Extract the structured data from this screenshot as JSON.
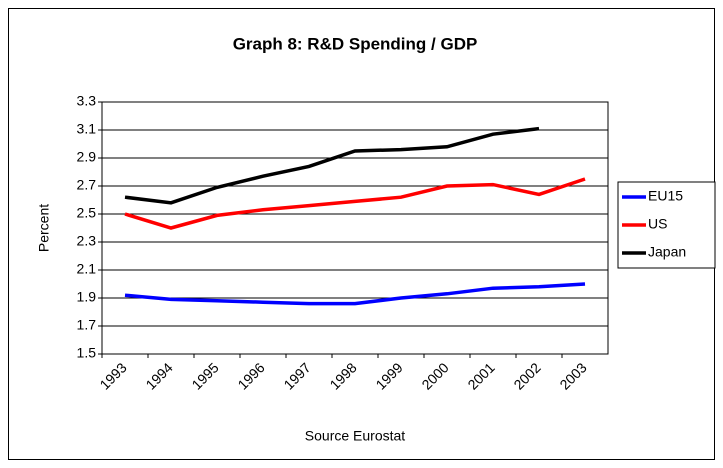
{
  "chart_data": {
    "type": "line",
    "title": "Graph 8: R&D Spending / GDP",
    "x_label": "Source Eurostat",
    "y_label": "Percent",
    "categories": [
      "1993",
      "1994",
      "1995",
      "1996",
      "1997",
      "1998",
      "1999",
      "2000",
      "2001",
      "2002",
      "2003"
    ],
    "series": [
      {
        "name": "EU15",
        "color": "#0000ff",
        "values": [
          1.92,
          1.89,
          1.88,
          1.87,
          1.86,
          1.86,
          1.9,
          1.93,
          1.97,
          1.98,
          2.0
        ]
      },
      {
        "name": "US",
        "color": "#ff0000",
        "values": [
          2.5,
          2.4,
          2.49,
          2.53,
          2.56,
          2.59,
          2.62,
          2.7,
          2.71,
          2.64,
          2.75
        ]
      },
      {
        "name": "Japan",
        "color": "#000000",
        "values": [
          2.62,
          2.58,
          2.69,
          2.77,
          2.84,
          2.95,
          2.96,
          2.98,
          3.07,
          3.11,
          null
        ]
      }
    ],
    "ylim": [
      1.5,
      3.3
    ],
    "yticks": [
      1.5,
      1.7,
      1.9,
      2.1,
      2.3,
      2.5,
      2.7,
      2.9,
      3.1,
      3.3
    ],
    "grid": true,
    "legend": "right"
  }
}
